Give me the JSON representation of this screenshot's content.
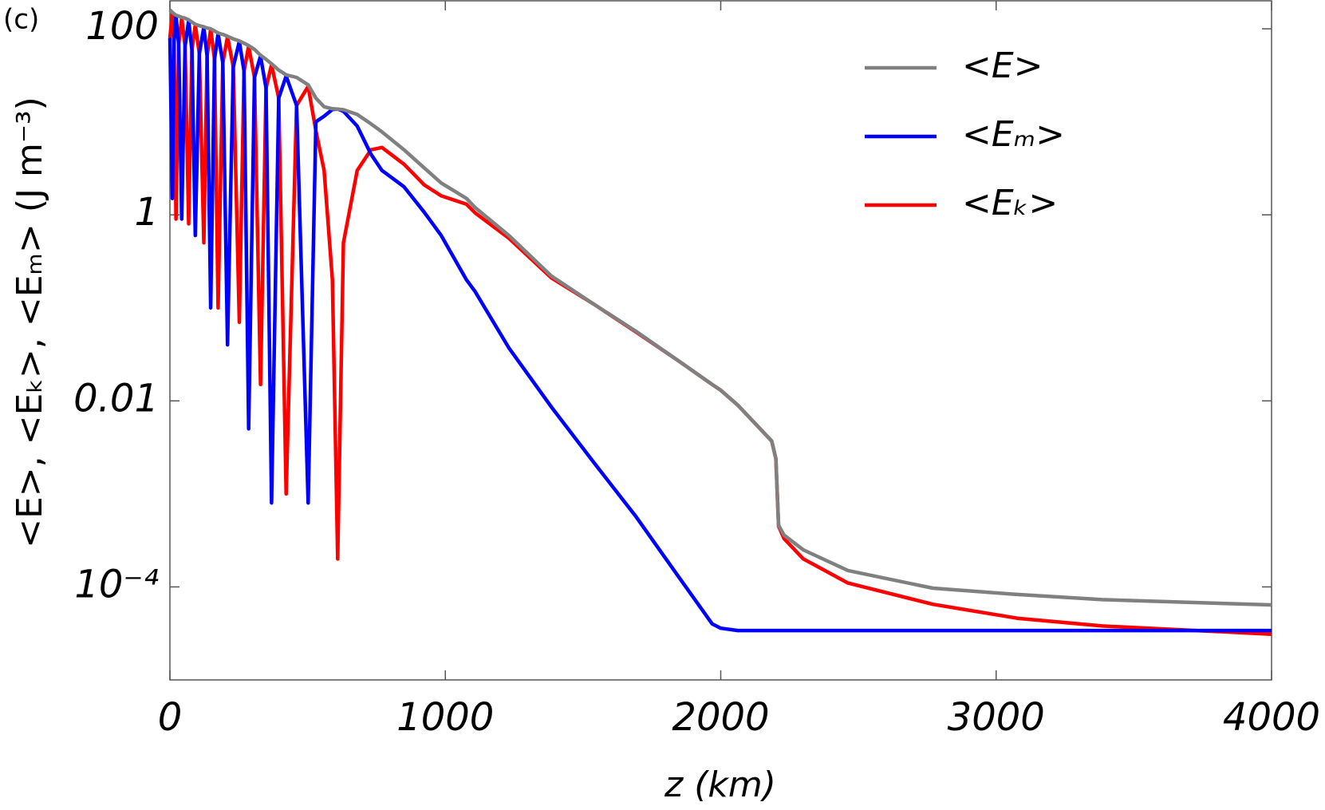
{
  "chart_data": {
    "type": "line",
    "panel_label": "(c)",
    "xlabel": "z (km)",
    "ylabel": "<E>, <Eₖ>, <Eₘ> (J m⁻³)",
    "xlim": [
      0,
      4000
    ],
    "xticks": [
      0,
      1000,
      2000,
      3000,
      4000
    ],
    "ylim": [
      1e-05,
      200
    ],
    "ylog": true,
    "yticks": [
      100,
      1,
      0.01,
      {
        "value": 0.0001,
        "label": "10⁻⁴"
      }
    ],
    "legend": "upper right",
    "x": [
      0,
      9,
      15,
      22,
      32,
      43,
      55,
      68,
      80,
      92,
      107,
      123,
      135,
      148,
      162,
      175,
      192,
      209,
      230,
      252,
      269,
      286,
      307,
      329,
      349,
      369,
      395,
      422,
      460,
      502,
      530,
      560,
      590,
      609,
      630,
      680,
      730,
      770,
      850,
      923,
      985,
      1077,
      1108,
      1231,
      1385,
      1538,
      1692,
      1846,
      1969,
      2000,
      2062,
      2185,
      2200,
      2210,
      2230,
      2300,
      2462,
      2770,
      3077,
      3385,
      4000
    ],
    "series": [
      {
        "name": "<Eₖ>",
        "color": "#ff0000",
        "values": [
          80,
          148,
          72,
          0.9,
          68,
          131,
          65,
          0.8,
          59,
          110,
          54,
          0.5,
          51,
          99,
          47,
          0.1,
          43,
          82,
          39,
          0.07,
          35,
          65,
          30,
          0.015,
          23,
          41,
          18,
          0.001,
          15,
          24,
          8,
          3,
          0.2,
          0.0002,
          0.5,
          3,
          5,
          5.3,
          3.5,
          2.1,
          1.6,
          1.3,
          1.05,
          0.56,
          0.21,
          0.11,
          0.055,
          0.027,
          0.015,
          0.013,
          0.009,
          0.0037,
          0.0024,
          0.00045,
          0.00033,
          0.0002,
          0.00011,
          6.5e-05,
          4.6e-05,
          3.8e-05,
          3.1e-05
        ]
      },
      {
        "name": "<Eₘ>",
        "color": "#0000ff",
        "values": [
          80,
          1.5,
          72,
          138,
          68,
          0.9,
          65,
          123,
          59,
          0.6,
          54,
          104,
          51,
          0.1,
          47,
          89,
          43,
          0.04,
          39,
          73,
          35,
          0.005,
          30,
          51,
          23,
          0.0008,
          18,
          31,
          15,
          0.0008,
          10,
          11.5,
          13.6,
          13.7,
          13,
          9,
          4.5,
          3,
          2,
          1.07,
          0.6,
          0.2,
          0.15,
          0.037,
          0.0086,
          0.0022,
          0.00057,
          0.00013,
          4e-05,
          3.6e-05,
          3.4e-05,
          3.4e-05,
          3.4e-05,
          3.4e-05,
          3.4e-05,
          3.4e-05,
          3.4e-05,
          3.4e-05,
          3.4e-05,
          3.4e-05,
          3.4e-05
        ]
      },
      {
        "name": "<E>",
        "color": "#808080",
        "values": [
          160,
          150,
          145,
          140,
          137,
          133,
          130,
          125,
          118,
          112,
          108,
          105,
          102,
          100,
          95,
          90,
          87,
          83,
          78,
          74,
          70,
          66,
          60,
          52,
          47,
          42,
          36,
          32,
          30,
          25,
          18,
          14.5,
          13.8,
          13.7,
          13.5,
          12,
          9.5,
          7.8,
          5,
          3.2,
          2.2,
          1.5,
          1.2,
          0.6,
          0.22,
          0.11,
          0.056,
          0.027,
          0.015,
          0.013,
          0.009,
          0.0037,
          0.0024,
          0.00046,
          0.00036,
          0.00025,
          0.00015,
          9.7e-05,
          8.3e-05,
          7.3e-05,
          6.4e-05
        ]
      }
    ]
  }
}
